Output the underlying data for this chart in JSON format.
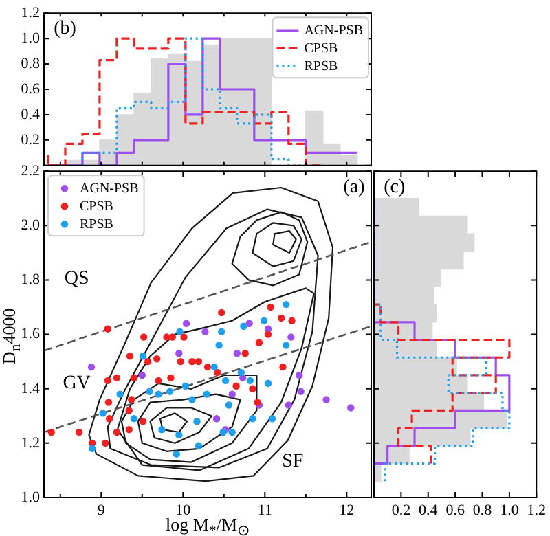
{
  "chart_data": [
    {
      "type": "histogram",
      "bins": [
        8.35,
        8.56,
        8.77,
        8.98,
        9.19,
        9.4,
        9.61,
        9.82,
        10.03,
        10.24,
        10.45,
        10.66,
        10.87,
        11.08,
        11.29,
        11.5,
        11.71,
        11.92,
        12.13
      ],
      "series": [
        {
          "color": "#d9d9d9",
          "values": [
            0,
            0.04,
            0.04,
            0.2,
            0.4,
            0.57,
            0.84,
            0.88,
            0.82,
            0.95,
            1.0,
            1.0,
            1.0,
            null,
            null,
            0.43,
            0.17,
            0.08
          ]
        },
        {
          "type": "step",
          "name": "AGN-PSB",
          "color": "#9d4eed",
          "line_style": "solid",
          "x": [
            8.35,
            8.56,
            8.77,
            8.98,
            9.19,
            9.4,
            9.61,
            9.82,
            10.03,
            10.24,
            10.45,
            10.66,
            10.87,
            11.08,
            11.29,
            11.5,
            11.71,
            11.92,
            12.13
          ],
          "values": [
            0,
            0,
            0,
            0.1,
            0,
            0.1,
            0.2,
            0.2,
            0.8,
            0.4,
            1.0,
            0.6,
            0.6,
            0.2,
            0.2,
            0.2,
            0.1,
            0.1,
            0.1
          ]
        },
        {
          "type": "step",
          "name": "CPSB",
          "color": "#f02020",
          "line_style": "dashed",
          "x": [
            8.35,
            8.56,
            8.77,
            8.98,
            9.19,
            9.4,
            9.61,
            9.82,
            10.03,
            10.24,
            10.45,
            10.66,
            10.87,
            11.08,
            11.29,
            11.5,
            11.71
          ],
          "values": [
            0.08,
            0,
            0.17,
            0.25,
            0.83,
            1.0,
            0.92,
            0.92,
            1.0,
            0.33,
            0.42,
            0.42,
            0.42,
            0.33,
            0.42,
            0.17,
            0
          ]
        },
        {
          "type": "step",
          "name": "RPSB",
          "color": "#1e9ff0",
          "line_style": "dotted",
          "x": [
            8.77,
            8.98,
            9.19,
            9.4,
            9.61,
            9.82,
            10.03,
            10.24,
            10.45,
            10.66,
            10.87,
            11.08,
            11.29,
            11.5
          ],
          "values": [
            0,
            0.1,
            0.1,
            0.45,
            0.5,
            0.45,
            0.5,
            1.0,
            0.6,
            0.45,
            0.33,
            0.4,
            0.05,
            0
          ]
        }
      ],
      "xlim": [
        8.3,
        12.3
      ],
      "xticks": [
        {
          "value": 8.5,
          "label": null
        },
        {
          "value": 9,
          "label": null
        },
        {
          "value": 9.5,
          "label": null
        },
        {
          "value": 10,
          "label": null
        },
        {
          "value": 10.5,
          "label": null
        },
        {
          "value": 11,
          "label": null
        },
        {
          "value": 11.5,
          "label": null
        },
        {
          "value": 12,
          "label": null
        }
      ],
      "ylim": [
        0,
        1.2
      ],
      "yticks": [
        {
          "value": 0,
          "label": null
        },
        0.2,
        0.4,
        0.6,
        0.8,
        {
          "value": 1,
          "label": "1.0"
        },
        1.2
      ],
      "tick_labels": "y",
      "legend": "top right",
      "annotations": [
        "(b)"
      ]
    },
    {
      "type": "scatter",
      "xlabel": "log M$_{*}$/M$_{⊙}$",
      "ylabel": "D$_{n}$4000",
      "series": [
        {
          "type": "line",
          "color": "#555555",
          "line_style": "dashed",
          "x": [
            8.3,
            12.3
          ],
          "values": [
            1.54,
            1.94
          ]
        },
        {
          "type": "line",
          "color": "#555555",
          "line_style": "dashed",
          "x": [
            8.3,
            12.3
          ],
          "values": [
            1.24,
            1.63
          ]
        },
        {
          "name": "AGN-PSB",
          "color": "#9d4eed",
          "marker": "circle",
          "x": [
            8.88,
            9.5,
            9.95,
            10.04,
            10.27,
            10.41,
            10.52,
            10.6,
            10.66,
            10.81,
            10.73,
            10.93,
            11.04,
            11.32,
            11.29,
            11.42,
            11.44,
            11.75,
            12.05
          ],
          "values": [
            1.48,
            1.45,
            1.53,
            1.64,
            1.61,
            1.29,
            1.25,
            1.38,
            1.53,
            1.64,
            1.44,
            1.34,
            1.62,
            1.59,
            1.34,
            1.45,
            1.39,
            1.36,
            1.33
          ]
        },
        {
          "name": "CPSB",
          "color": "#f02020",
          "marker": "circle",
          "x": [
            8.39,
            8.73,
            8.89,
            9.05,
            9.1,
            9.09,
            9.19,
            9.08,
            9.19,
            9.34,
            9.34,
            9.37,
            9.4,
            9.35,
            9.08,
            9.52,
            9.57,
            9.68,
            9.7,
            9.8,
            9.87,
            9.85,
            9.97,
            10.01,
            10.11,
            10.19,
            10.3,
            10.42,
            10.47,
            10.65,
            10.76,
            10.85,
            10.93,
            11.07,
            11.2,
            11.22,
            11.33,
            10.91,
            9.51,
            11.04
          ],
          "values": [
            1.24,
            1.24,
            1.2,
            1.2,
            1.29,
            1.35,
            1.44,
            1.43,
            1.24,
            1.25,
            1.32,
            1.36,
            1.44,
            1.52,
            1.62,
            1.59,
            1.5,
            1.51,
            1.43,
            1.59,
            1.59,
            1.44,
            1.5,
            1.59,
            1.5,
            1.5,
            1.48,
            1.46,
            1.68,
            1.41,
            1.53,
            1.4,
            1.57,
            1.7,
            1.66,
            1.48,
            1.65,
            1.35,
            1.28,
            1.6
          ]
        },
        {
          "name": "RPSB",
          "color": "#1e9ff0",
          "marker": "circle",
          "x": [
            8.89,
            9.02,
            9.23,
            9.4,
            9.51,
            9.59,
            9.7,
            9.74,
            9.84,
            9.92,
            9.95,
            9.96,
            10.03,
            10.11,
            10.17,
            10.19,
            10.29,
            10.38,
            10.44,
            10.47,
            10.52,
            10.56,
            10.6,
            10.71,
            10.74,
            10.82,
            10.85,
            10.99,
            11.04,
            11.09,
            11.26,
            11.26,
            10.49
          ],
          "values": [
            1.18,
            1.31,
            1.38,
            1.29,
            1.52,
            1.39,
            1.38,
            1.25,
            1.39,
            1.16,
            1.23,
            1.61,
            1.41,
            1.36,
            1.28,
            1.19,
            1.38,
            1.48,
            1.56,
            1.61,
            1.43,
            1.34,
            1.24,
            1.46,
            1.63,
            1.43,
            1.29,
            1.65,
            1.42,
            1.29,
            1.71,
            1.56,
            1.24
          ]
        }
      ],
      "xlim": [
        8.3,
        12.3
      ],
      "xticks": [
        {
          "value": 8.5,
          "label": null
        },
        9,
        {
          "value": 9.5,
          "label": null
        },
        10,
        {
          "value": 10.5,
          "label": null
        },
        11,
        {
          "value": 11.5,
          "label": null
        },
        12
      ],
      "ylim": [
        1.0,
        2.2
      ],
      "yticks": [
        {
          "value": 1,
          "label": "1.0"
        },
        1.2,
        1.4,
        1.6,
        1.8,
        {
          "value": 2,
          "label": "2.0"
        },
        2.2
      ],
      "legend": "top left",
      "annotations": [
        "QS",
        "GV",
        "SF",
        "(a)"
      ]
    },
    {
      "type": "histogram",
      "orientation": "horizontal",
      "bins": [
        1.06,
        1.125,
        1.19,
        1.255,
        1.32,
        1.385,
        1.45,
        1.515,
        1.58,
        1.645,
        1.71,
        1.775,
        1.84,
        1.905,
        1.97,
        2.035,
        2.1
      ],
      "series": [
        {
          "color": "#d9d9d9",
          "values": [
            0.05,
            0.26,
            0.71,
            0.98,
            0.81,
            0.69,
            0.61,
            0.46,
            0.43,
            0.46,
            0.44,
            0.49,
            0.66,
            0.74,
            0.69,
            0.33
          ]
        },
        {
          "type": "step",
          "color": "#9d4eed",
          "line_style": "solid",
          "x": [
            1.06,
            1.125,
            1.19,
            1.255,
            1.32,
            1.385,
            1.45,
            1.515,
            1.58,
            1.645,
            1.71,
            1.775,
            1.84,
            1.905,
            1.97,
            2.035,
            2.1
          ],
          "values": [
            0,
            0.1,
            0.3,
            0.6,
            1.0,
            1.0,
            0.9,
            0.6,
            0.3,
            0,
            0,
            0,
            0,
            0,
            0,
            0,
            0
          ]
        },
        {
          "type": "step",
          "color": "#f02020",
          "line_style": "dashed",
          "x": [
            1.125,
            1.19,
            1.255,
            1.32,
            1.385,
            1.45,
            1.515,
            1.58,
            1.645,
            1.71
          ],
          "values": [
            0.42,
            0.18,
            0.28,
            0.58,
            0.9,
            0.58,
            1.0,
            0.18,
            0.05,
            0
          ]
        },
        {
          "type": "step",
          "color": "#1e9ff0",
          "line_style": "dotted",
          "x": [
            1.06,
            1.125,
            1.19,
            1.255,
            1.32,
            1.385,
            1.45,
            1.515,
            1.58,
            1.645,
            1.71,
            1.775
          ],
          "values": [
            0.08,
            0.45,
            0.73,
            1.0,
            0.95,
            0.55,
            0.83,
            0.17,
            0.05,
            0.05,
            0,
            0
          ]
        }
      ],
      "xlim": [
        0,
        1.2
      ],
      "xticks": [
        {
          "value": 0,
          "label": null
        },
        0.2,
        0.4,
        0.6,
        0.8,
        {
          "value": 1,
          "label": "1.0"
        },
        1.2
      ],
      "ylim": [
        1.0,
        2.2
      ],
      "yticks": [
        {
          "value": 1,
          "label": null
        },
        {
          "value": 1.2,
          "label": null
        },
        {
          "value": 1.4,
          "label": null
        },
        {
          "value": 1.6,
          "label": null
        },
        {
          "value": 1.8,
          "label": null
        },
        {
          "value": 2,
          "label": null
        },
        {
          "value": 2.2,
          "label": null
        }
      ],
      "tick_labels": "x",
      "annotations": [
        "(c)"
      ]
    }
  ]
}
